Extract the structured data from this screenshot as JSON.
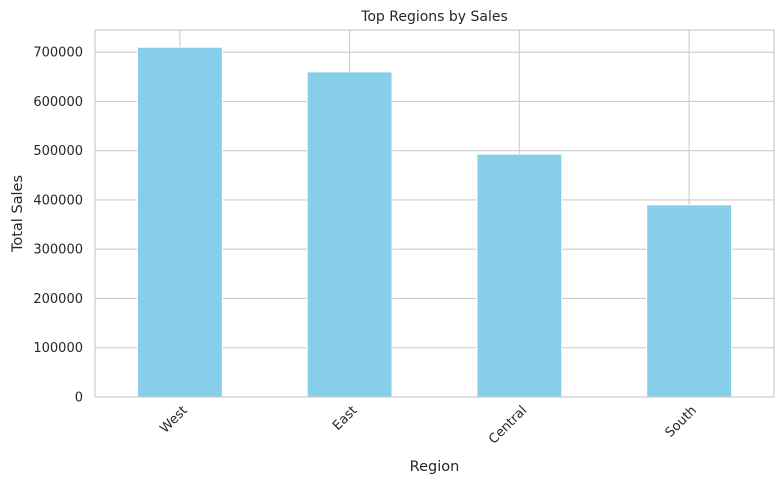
{
  "chart_data": {
    "type": "bar",
    "title": "Top Regions by Sales",
    "xlabel": "Region",
    "ylabel": "Total Sales",
    "categories": [
      "West",
      "East",
      "Central",
      "South"
    ],
    "values": [
      710000,
      660000,
      493000,
      390000
    ],
    "ylim": [
      0,
      745000
    ],
    "yticks": [
      0,
      100000,
      200000,
      300000,
      400000,
      500000,
      600000,
      700000
    ],
    "grid": true,
    "bar_color": "#87CEEB",
    "grid_color": "#cccccc"
  }
}
